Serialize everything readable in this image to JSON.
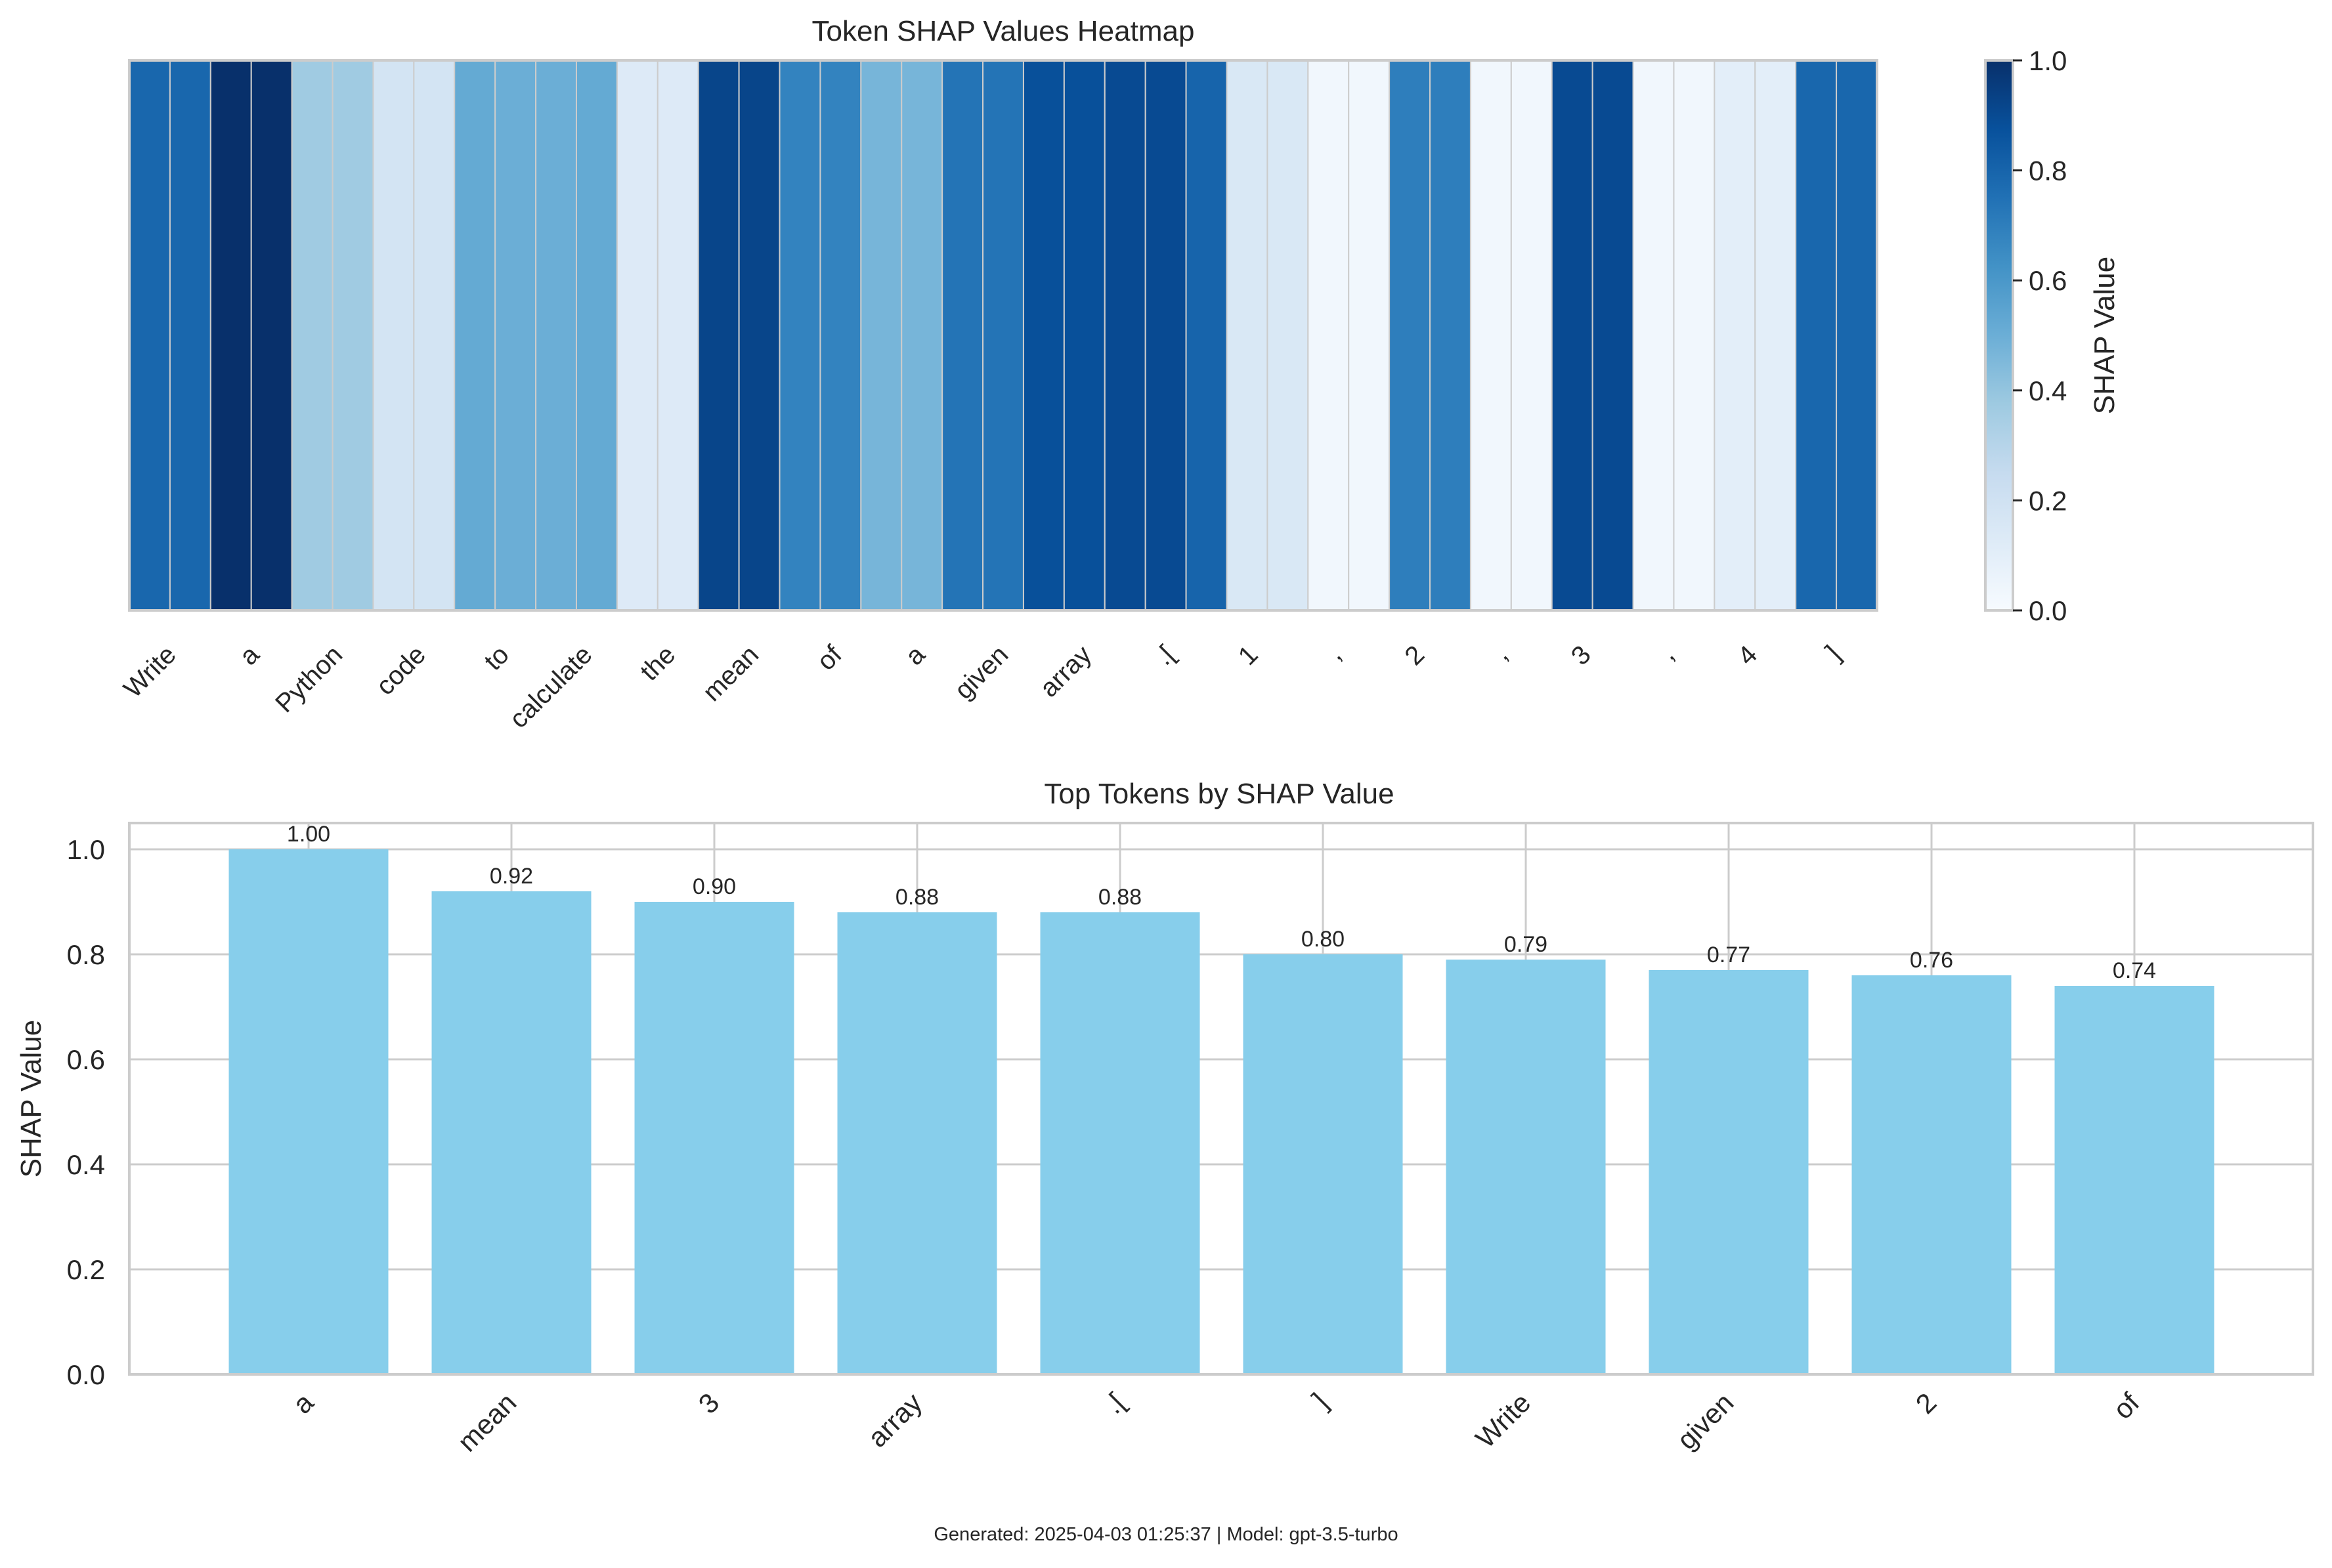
{
  "chart_data": [
    {
      "type": "heatmap",
      "title": "Token SHAP Values Heatmap",
      "tokens": [
        "Write",
        "a",
        "Python",
        "code",
        "to",
        "calculate",
        "the",
        "mean",
        "of",
        "a",
        "given",
        "array",
        ".[",
        "1",
        ",",
        "2",
        ",",
        "3",
        ",",
        "4",
        "]"
      ],
      "tick_labels": [
        "Write",
        "a",
        "Python",
        "code",
        "to",
        "calculate",
        "the",
        "mean",
        "of",
        "a",
        "given",
        "array",
        ".[",
        "1",
        ",",
        "2",
        ",",
        "3",
        ",",
        "4",
        "]"
      ],
      "columns": [
        0.79,
        0.79,
        1.0,
        1.0,
        0.37,
        0.37,
        0.18,
        0.18,
        0.52,
        0.5,
        0.5,
        0.52,
        0.13,
        0.13,
        0.92,
        0.92,
        0.68,
        0.68,
        0.47,
        0.47,
        0.74,
        0.74,
        0.88,
        0.88,
        0.9,
        0.9,
        0.8,
        0.15,
        0.15,
        0.03,
        0.03,
        0.7,
        0.7,
        0.03,
        0.03,
        0.9,
        0.9,
        0.03,
        0.03,
        0.1,
        0.1,
        0.79,
        0.79
      ],
      "colorbar": {
        "label": "SHAP Value",
        "range": [
          0,
          1
        ],
        "ticks": [
          "0.0",
          "0.2",
          "0.4",
          "0.6",
          "0.8",
          "1.0"
        ],
        "colormap": "Blues"
      }
    },
    {
      "type": "bar",
      "title": "Top Tokens by SHAP Value",
      "categories": [
        "a",
        "mean",
        "3",
        "array",
        ".[",
        "]",
        "Write",
        "given",
        "2",
        "of"
      ],
      "values": [
        1.0,
        0.92,
        0.9,
        0.88,
        0.88,
        0.8,
        0.79,
        0.77,
        0.76,
        0.74
      ],
      "value_labels": [
        "1.00",
        "0.92",
        "0.90",
        "0.88",
        "0.88",
        "0.80",
        "0.79",
        "0.77",
        "0.76",
        "0.74"
      ],
      "ylabel": "SHAP Value",
      "ylim": [
        0,
        1.05
      ],
      "yticks": [
        "0.0",
        "0.2",
        "0.4",
        "0.6",
        "0.8",
        "1.0"
      ],
      "bar_color": "#87ceeb",
      "grid": true
    }
  ],
  "footer": "Generated: 2025-04-03 01:25:37 | Model: gpt-3.5-turbo"
}
